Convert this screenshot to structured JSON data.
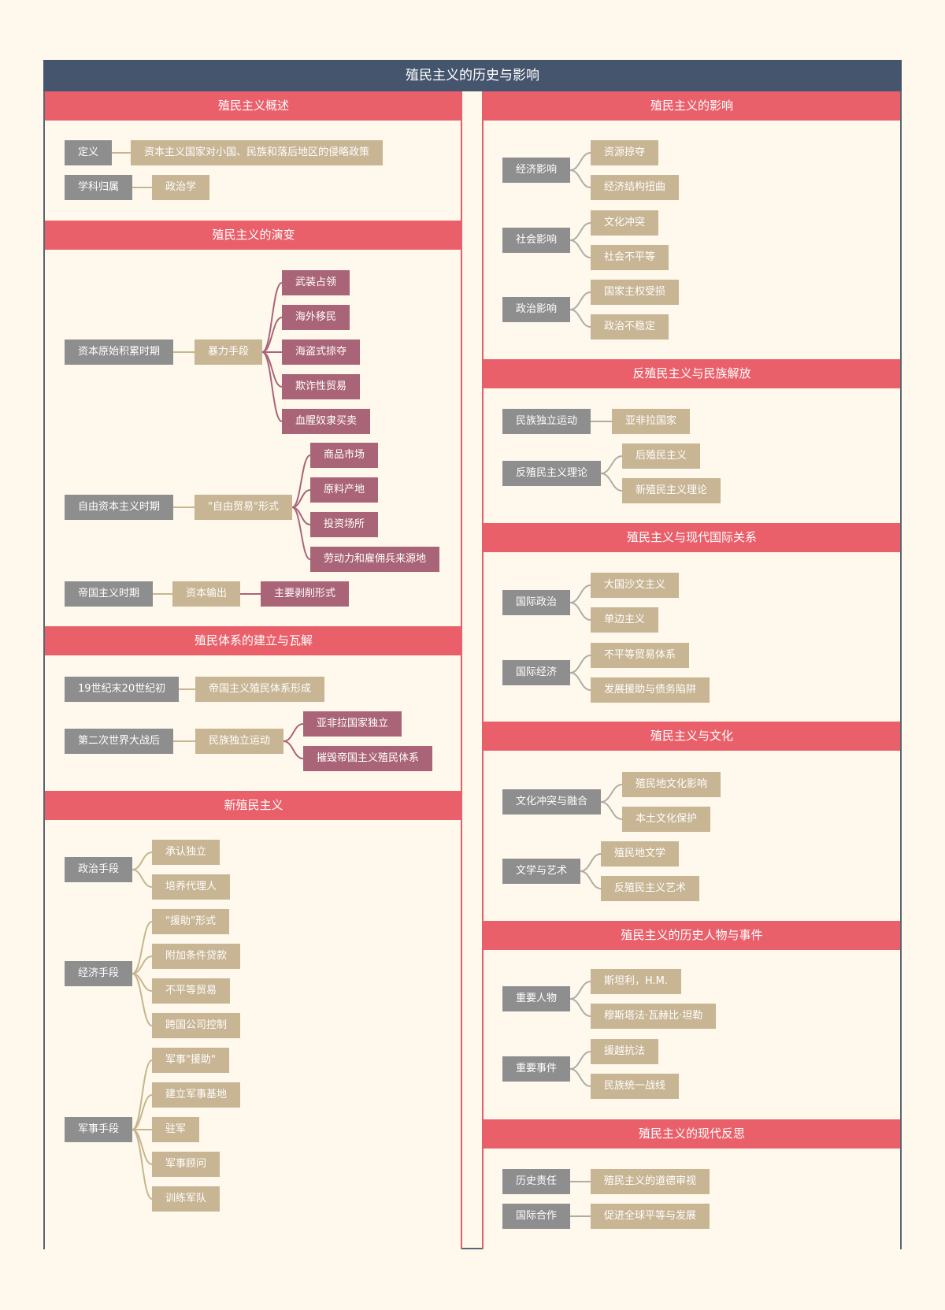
{
  "title": "殖民主义的历史与影响",
  "colors": {
    "header": "#44556d",
    "section": "#e9606a",
    "grey": "#8f8e8e",
    "tan": "#c8b594",
    "mauve": "#aa6478",
    "mauve_line": "#a96478",
    "tan_line": "#c6b58f",
    "grey_line": "#b0aba4",
    "bg": "#fef9ec"
  },
  "sections": {
    "overview": {
      "title": "殖民主义概述",
      "n": [
        "定义",
        "资本主义国家对小国、民族和落后地区的侵略政策",
        "学科归属",
        "政治学"
      ]
    },
    "evolution": {
      "title": "殖民主义的演变",
      "n": [
        "资本原始积累时期",
        "暴力手段",
        "武装占领",
        "海外移民",
        "海盗式掠夺",
        "欺诈性贸易",
        "血腥奴隶买卖",
        "自由资本主义时期",
        "\"自由贸易\"形式",
        "商品市场",
        "原料产地",
        "投资场所",
        "劳动力和雇佣兵来源地",
        "帝国主义时期",
        "资本输出",
        "主要剥削形式"
      ]
    },
    "system": {
      "title": "殖民体系的建立与瓦解",
      "n": [
        "19世纪末20世纪初",
        "帝国主义殖民体系形成",
        "第二次世界大战后",
        "民族独立运动",
        "亚非拉国家独立",
        "摧毁帝国主义殖民体系"
      ]
    },
    "neo": {
      "title": "新殖民主义",
      "n": [
        "政治手段",
        "承认独立",
        "培养代理人",
        "经济手段",
        "\"援助\"形式",
        "附加条件贷款",
        "不平等贸易",
        "跨国公司控制",
        "军事手段",
        "军事\"援助\"",
        "建立军事基地",
        "驻军",
        "军事顾问",
        "训练军队"
      ]
    },
    "impact": {
      "title": "殖民主义的影响",
      "n": [
        "经济影响",
        "资源掠夺",
        "经济结构扭曲",
        "社会影响",
        "文化冲突",
        "社会不平等",
        "政治影响",
        "国家主权受损",
        "政治不稳定"
      ]
    },
    "anti": {
      "title": "反殖民主义与民族解放",
      "n": [
        "民族独立运动",
        "亚非拉国家",
        "反殖民主义理论",
        "后殖民主义",
        "新殖民主义理论"
      ]
    },
    "relations": {
      "title": "殖民主义与现代国际关系",
      "n": [
        "国际政治",
        "大国沙文主义",
        "单边主义",
        "国际经济",
        "不平等贸易体系",
        "发展援助与债务陷阱"
      ]
    },
    "culture": {
      "title": "殖民主义与文化",
      "n": [
        "文化冲突与融合",
        "殖民地文化影响",
        "本土文化保护",
        "文学与艺术",
        "殖民地文学",
        "反殖民主义艺术"
      ]
    },
    "figures": {
      "title": "殖民主义的历史人物与事件",
      "n": [
        "重要人物",
        "斯坦利，H.M.",
        "穆斯塔法·瓦赫比·坦勒",
        "重要事件",
        "援越抗法",
        "民族统一战线"
      ]
    },
    "reflection": {
      "title": "殖民主义的现代反思",
      "n": [
        "历史责任",
        "殖民主义的道德审视",
        "国际合作",
        "促进全球平等与发展"
      ]
    }
  }
}
